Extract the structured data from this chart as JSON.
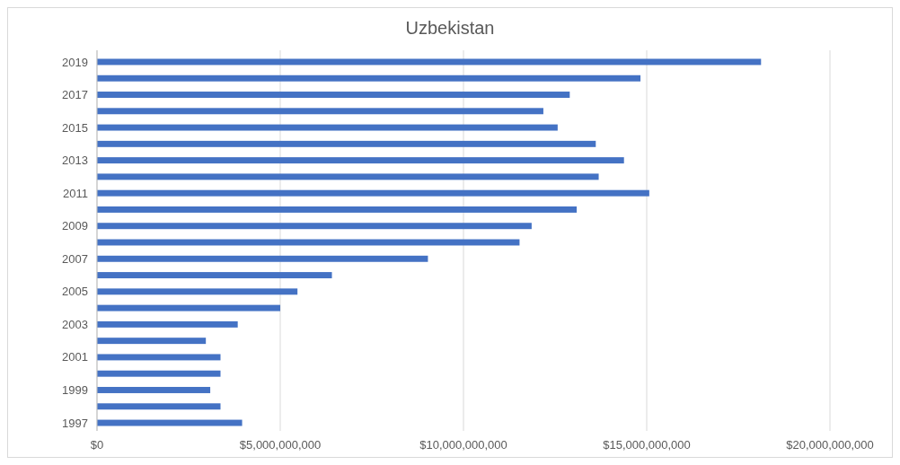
{
  "chart_data": {
    "type": "bar",
    "orientation": "horizontal",
    "title": "Uzbekistan",
    "categories": [
      "2019",
      null,
      "2017",
      null,
      "2015",
      null,
      "2013",
      null,
      "2011",
      null,
      "2009",
      null,
      "2007",
      null,
      "2005",
      null,
      "2003",
      null,
      "2001",
      null,
      "1999",
      null,
      "1997"
    ],
    "values": [
      18120000000,
      14830000000,
      12900000000,
      12180000000,
      12570000000,
      13610000000,
      14380000000,
      13690000000,
      15070000000,
      13090000000,
      11860000000,
      11530000000,
      9030000000,
      6410000000,
      5470000000,
      5000000000,
      3840000000,
      2970000000,
      3370000000,
      3370000000,
      3090000000,
      3370000000,
      3960000000
    ],
    "color": "#4472c4",
    "xlim": [
      0,
      20000000000
    ],
    "xticks": [
      {
        "value": 0,
        "label": "$0"
      },
      {
        "value": 5000000000,
        "label": "$5,000,000,000"
      },
      {
        "value": 10000000000,
        "label": "$10,000,000,000"
      },
      {
        "value": 15000000000,
        "label": "$15,000,000,000"
      },
      {
        "value": 20000000000,
        "label": "$20,000,000,000"
      }
    ],
    "grid": "x"
  }
}
